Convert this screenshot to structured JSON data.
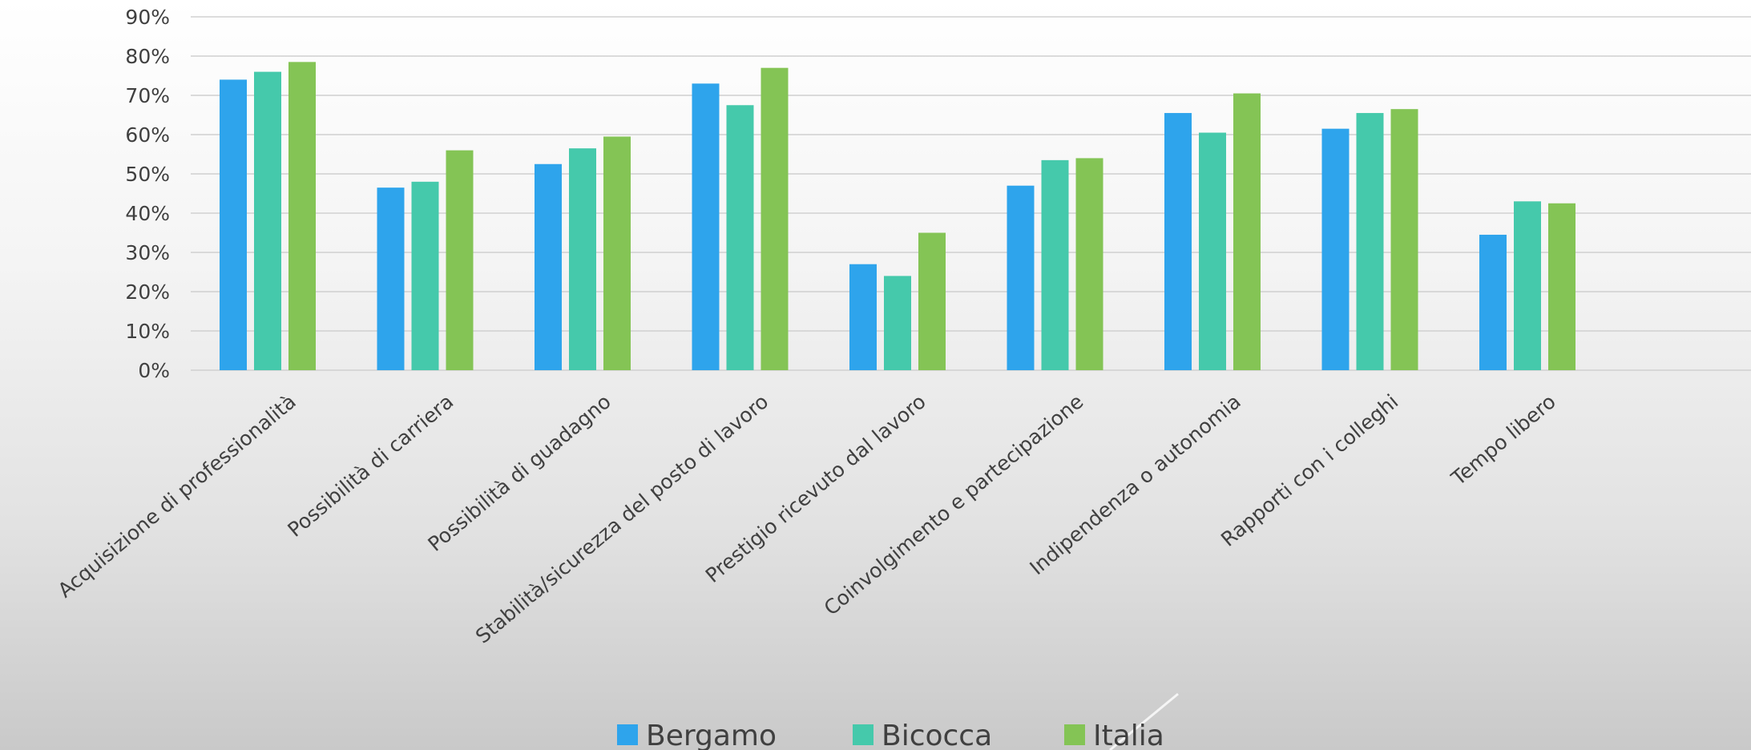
{
  "chart_data": {
    "type": "bar",
    "categories": [
      "Acquisizione di professionalità",
      "Possibilità di carriera",
      "Possibilità di guadagno",
      "Stabilità/sicurezza del posto di lavoro",
      "Prestigio ricevuto dal lavoro",
      "Coinvolgimento e partecipazione",
      "Indipendenza o autonomia",
      "Rapporti con i colleghi",
      "Tempo libero"
    ],
    "series": [
      {
        "name": "Bergamo",
        "color": "#2ea4ec",
        "values": [
          74,
          46.5,
          52.5,
          73,
          27,
          47,
          65.5,
          61.5,
          34.5
        ]
      },
      {
        "name": "Bicocca",
        "color": "#45c9ab",
        "values": [
          76,
          48,
          56.5,
          67.5,
          24,
          53.5,
          60.5,
          65.5,
          43
        ]
      },
      {
        "name": "Italia",
        "color": "#84c455",
        "values": [
          78.5,
          56,
          59.5,
          77,
          35,
          54,
          70.5,
          66.5,
          42.5
        ]
      }
    ],
    "yticks": [
      "0%",
      "10%",
      "20%",
      "30%",
      "40%",
      "50%",
      "60%",
      "70%",
      "80%",
      "90%"
    ],
    "ylim": [
      0,
      90
    ],
    "grid": true,
    "legend_position": "bottom"
  }
}
